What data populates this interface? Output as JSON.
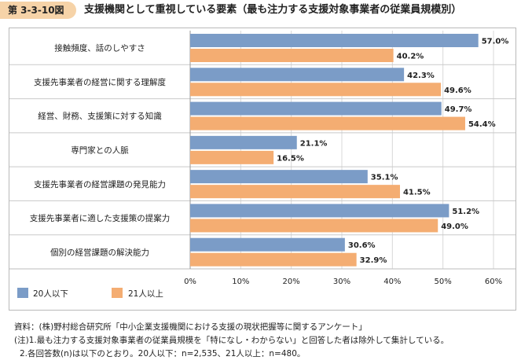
{
  "header": {
    "figure_label": "第 3-3-10図",
    "title": "支援機関として重視している要素（最も注力する支援対象事業者の従業員規模別）"
  },
  "chart_data": {
    "type": "bar",
    "orientation": "horizontal",
    "categories": [
      "接触頻度、話のしやすさ",
      "支援先事業者の経営に関する理解度",
      "経営、財務、支援策に対する知識",
      "専門家との人脈",
      "支援先事業者の経営課題の発見能力",
      "支援先事業者に適した支援策の提案力",
      "個別の経営課題の解決能力"
    ],
    "series": [
      {
        "name": "20人以下",
        "color": "#7b9cc7",
        "values": [
          57.0,
          42.3,
          49.7,
          21.1,
          35.1,
          51.2,
          30.6
        ],
        "labels": [
          "57.0%",
          "42.3%",
          "49.7%",
          "21.1%",
          "35.1%",
          "51.2%",
          "30.6%"
        ]
      },
      {
        "name": "21人以上",
        "color": "#f4ad72",
        "values": [
          40.2,
          49.6,
          54.4,
          16.5,
          41.5,
          49.0,
          32.9
        ],
        "labels": [
          "40.2%",
          "49.6%",
          "54.4%",
          "16.5%",
          "41.5%",
          "49.0%",
          "32.9%"
        ]
      }
    ],
    "xlim": [
      0,
      60
    ],
    "xticks": [
      0,
      10,
      20,
      30,
      40,
      50,
      60
    ],
    "xtick_labels": [
      "0%",
      "10%",
      "20%",
      "30%",
      "40%",
      "50%",
      "60%"
    ],
    "grid": true,
    "legend_position": "bottom-left"
  },
  "notes": [
    "資料：(株)野村総合研究所「中小企業支援機関における支援の現状把握等に関するアンケート」",
    "(注)1.最も注力する支援対象事業者の従業員規模を「特になし・わからない」と回答した者は除外して集計している。",
    "2.各回答数(n)は以下のとおり。20人以下：n=2,535、21人以上：n=480。"
  ]
}
